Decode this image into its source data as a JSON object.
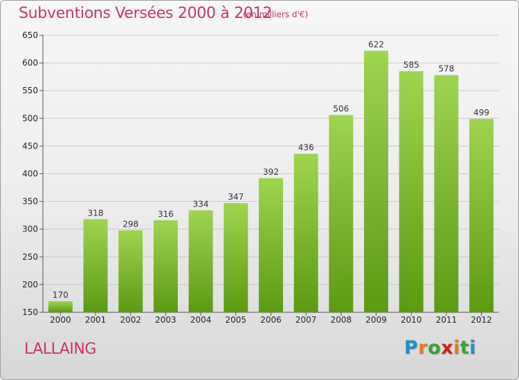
{
  "title": "Subventions Versées 2000 à 2012",
  "subtitle": "(en milliers d'€)",
  "commune": "LALLAING",
  "logo": {
    "letters": [
      "P",
      "r",
      "o",
      "x",
      "i",
      "t",
      "i"
    ],
    "colors": [
      "#1e90c8",
      "#e8781e",
      "#3aa03a",
      "#d42020",
      "#e8781e",
      "#3aa03a",
      "#1e90c8"
    ]
  },
  "colors": {
    "bar_top": "#9fd451",
    "bar_bottom": "#5c9a12",
    "title": "#c8336e",
    "grid": "#c8c8c8"
  },
  "chart_data": {
    "type": "bar",
    "categories": [
      "2000",
      "2001",
      "2002",
      "2003",
      "2004",
      "2005",
      "2006",
      "2007",
      "2008",
      "2009",
      "2010",
      "2011",
      "2012"
    ],
    "values": [
      170,
      318,
      298,
      316,
      334,
      347,
      392,
      436,
      506,
      622,
      585,
      578,
      499
    ],
    "title": "Subventions Versées 2000 à 2012",
    "xlabel": "",
    "ylabel": "",
    "ylim": [
      150,
      650
    ],
    "yticks": [
      150,
      200,
      250,
      300,
      350,
      400,
      450,
      500,
      550,
      600,
      650
    ],
    "grid": true
  }
}
